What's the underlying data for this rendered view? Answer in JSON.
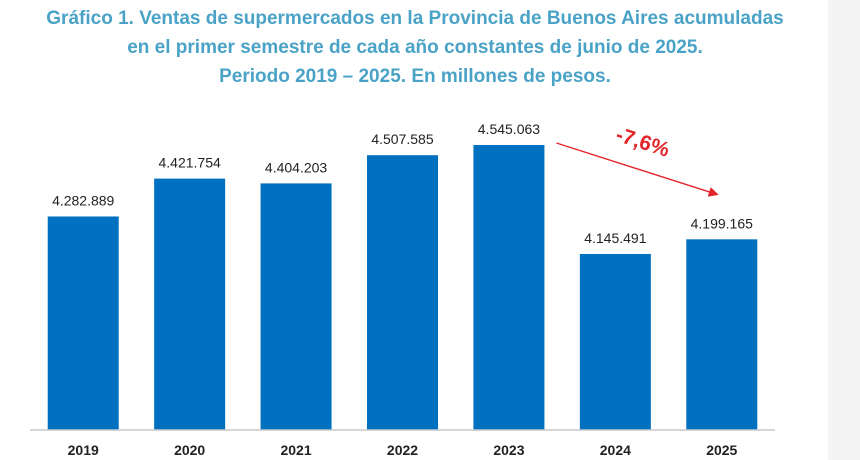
{
  "chart_data": {
    "type": "bar",
    "title_lines": [
      "Gráfico 1. Ventas de supermercados en la Provincia de Buenos Aires acumuladas",
      "en el primer semestre de cada año constantes de junio de 2025.",
      "Periodo 2019 – 2025. En millones de pesos."
    ],
    "categories": [
      "2019",
      "2020",
      "2021",
      "2022",
      "2023",
      "2024",
      "2025"
    ],
    "values": [
      4282889,
      4421754,
      4404203,
      4507585,
      4545063,
      4145491,
      4199165
    ],
    "value_labels": [
      "4.282.889",
      "4.421.754",
      "4.404.203",
      "4.507.585",
      "4.545.063",
      "4.145.491",
      "4.199.165"
    ],
    "ylim": [
      3500000,
      4600000
    ],
    "xlabel": "",
    "ylabel": "",
    "grid": false,
    "annotation": {
      "text": "-7,6%",
      "from_category": "2023",
      "to_category": "2025"
    },
    "colors": {
      "bar": "#0070c0",
      "title": "#4aa3c7",
      "annotation": "#e3262b",
      "axis": "#c8c8c8"
    }
  }
}
